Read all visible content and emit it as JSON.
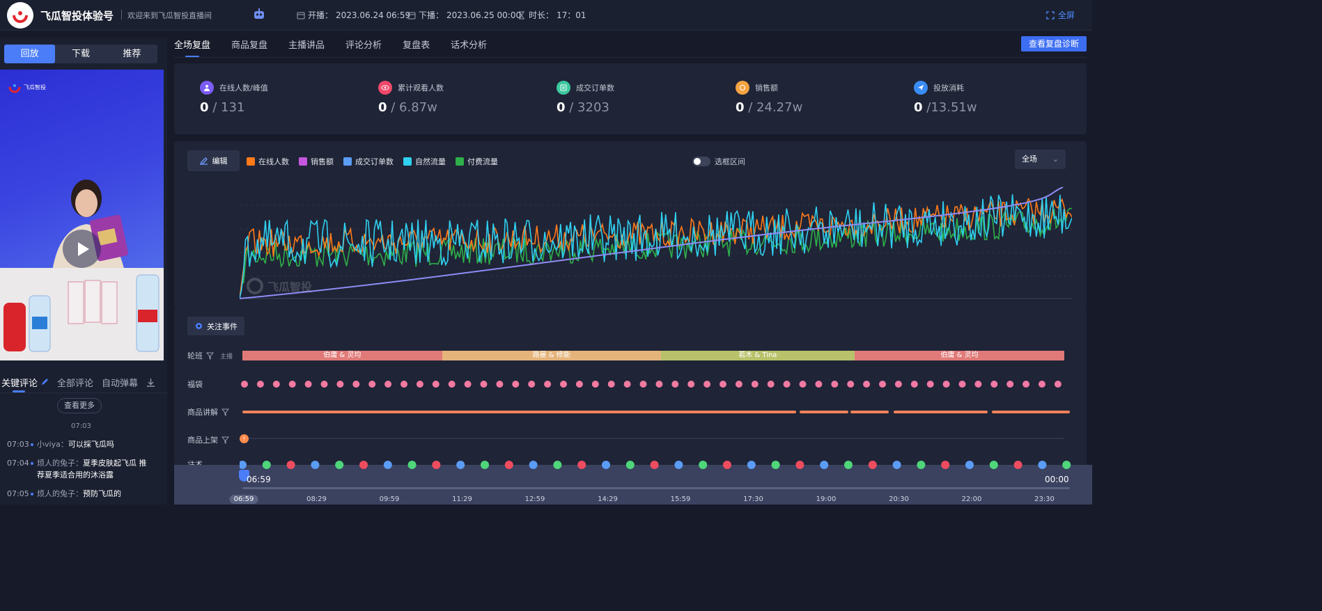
{
  "header": {
    "brand": "飞瓜智投体验号",
    "welcome": "欢迎来到飞瓜智投直播间",
    "start_label": "开播：",
    "start_time": "2023.06.24 06:59",
    "end_label": "下播：",
    "end_time": "2023.06.25 00:00",
    "duration_label": "时长：",
    "duration": "17：01",
    "fullscreen": "全屏"
  },
  "left": {
    "tabs": [
      "回放",
      "下载",
      "推荐"
    ],
    "video_logo_text": "飞瓜智投",
    "comment_tabs": [
      "关键评论",
      "全部评论",
      "自动弹幕"
    ],
    "more_label": "查看更多",
    "time_divider": "07:03",
    "comments": [
      {
        "time": "07:03",
        "user": "小viya：",
        "msg": "可以採飞瓜吗"
      },
      {
        "time": "07:04",
        "user": "烦人的兔子：",
        "msg": "夏季皮肤起飞瓜 推荐夏季适合用的沐浴露"
      },
      {
        "time": "07:05",
        "user": "烦人的兔子：",
        "msg": "预防飞瓜的"
      }
    ]
  },
  "main": {
    "tabs": [
      "全场复盘",
      "商品复盘",
      "主播讲品",
      "评论分析",
      "复盘表",
      "话术分析"
    ],
    "diag_button": "查看复盘诊断",
    "stats": [
      {
        "label": "在线人数/峰值",
        "now": "0",
        "peak": "/ 131",
        "color": "#7b5cf5"
      },
      {
        "label": "累计观看人数",
        "now": "0",
        "peak": "/ 6.87w",
        "color": "#f0486a"
      },
      {
        "label": "成交订单数",
        "now": "0",
        "peak": "/ 3203",
        "color": "#3cc9a0"
      },
      {
        "label": "销售额",
        "now": "0",
        "peak": "/ 24.27w",
        "color": "#f5a341"
      },
      {
        "label": "投放消耗",
        "now": "0",
        "peak": "/13.51w",
        "color": "#3a8cf5"
      }
    ],
    "edit_label": "编辑",
    "legend": [
      {
        "name": "在线人数",
        "color": "#ff7a1a"
      },
      {
        "name": "销售额",
        "color": "#c657e0"
      },
      {
        "name": "成交订单数",
        "color": "#5b9cf5"
      },
      {
        "name": "自然流量",
        "color": "#2fd0f0"
      },
      {
        "name": "付费流量",
        "color": "#2eaf4a"
      }
    ],
    "range_toggle": "选框区间",
    "scope_select": "全场",
    "watermark": "飞瓜智投",
    "events_button": "关注事件",
    "rows": {
      "anchor": "轮班",
      "anchor_sub": "主播",
      "bag": "福袋",
      "product": "商品讲解",
      "shelf": "商品上架",
      "talk": "话术"
    },
    "anchors": [
      {
        "name": "伯庸 & 灵均",
        "color": "#e07a78",
        "frac": 0.243
      },
      {
        "name": "路曼 & 修能",
        "color": "#e5b47b",
        "frac": 0.266
      },
      {
        "name": "若木 & Tina",
        "color": "#b9c26a",
        "frac": 0.236
      },
      {
        "name": "伯庸 & 灵均",
        "color": "#e07a78",
        "frac": 0.255
      }
    ],
    "shelf_marker": "!",
    "timeline": {
      "start": "06:59",
      "end": "00:00",
      "ticks": [
        "06:59",
        "08:29",
        "09:59",
        "11:29",
        "12:59",
        "14:29",
        "15:59",
        "17:30",
        "19:00",
        "20:30",
        "22:00",
        "23:30"
      ]
    }
  }
}
